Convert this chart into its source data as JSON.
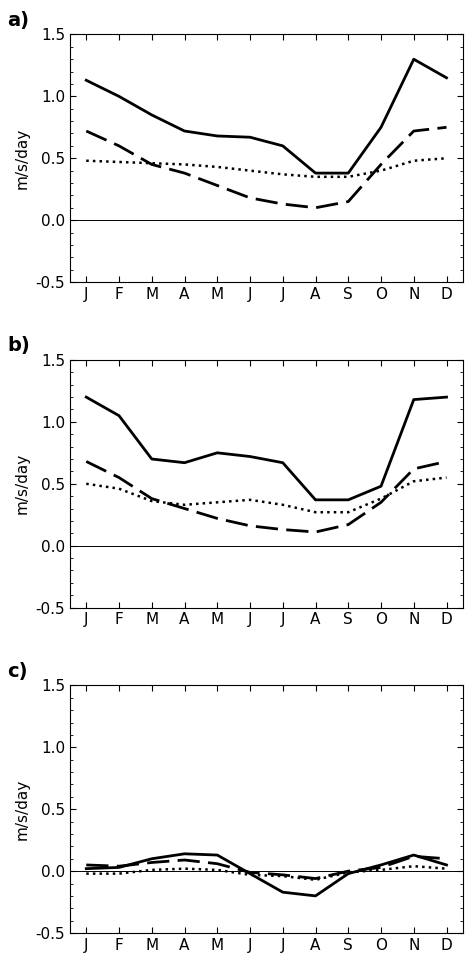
{
  "months": [
    "J",
    "F",
    "M",
    "A",
    "M",
    "J",
    "J",
    "A",
    "S",
    "O",
    "N",
    "D"
  ],
  "panel_a": {
    "solid": [
      1.13,
      1.0,
      0.85,
      0.72,
      0.68,
      0.67,
      0.6,
      0.38,
      0.38,
      0.75,
      1.3,
      1.15
    ],
    "dashed": [
      0.72,
      0.6,
      0.45,
      0.38,
      0.28,
      0.18,
      0.13,
      0.1,
      0.15,
      0.45,
      0.72,
      0.75
    ],
    "dotted": [
      0.48,
      0.47,
      0.46,
      0.45,
      0.43,
      0.4,
      0.37,
      0.35,
      0.35,
      0.4,
      0.48,
      0.5
    ]
  },
  "panel_b": {
    "solid": [
      1.2,
      1.05,
      0.7,
      0.67,
      0.75,
      0.72,
      0.67,
      0.37,
      0.37,
      0.48,
      1.18,
      1.2
    ],
    "dashed": [
      0.68,
      0.55,
      0.38,
      0.3,
      0.22,
      0.16,
      0.13,
      0.11,
      0.17,
      0.35,
      0.62,
      0.68
    ],
    "dotted": [
      0.5,
      0.46,
      0.36,
      0.33,
      0.35,
      0.37,
      0.33,
      0.27,
      0.27,
      0.38,
      0.52,
      0.55
    ]
  },
  "panel_c": {
    "solid": [
      0.02,
      0.03,
      0.1,
      0.14,
      0.13,
      -0.02,
      -0.17,
      -0.2,
      -0.02,
      0.05,
      0.13,
      0.05
    ],
    "dashed": [
      0.05,
      0.04,
      0.07,
      0.09,
      0.06,
      -0.01,
      -0.03,
      -0.06,
      0.0,
      0.03,
      0.12,
      0.1
    ],
    "dotted": [
      -0.02,
      -0.02,
      0.01,
      0.02,
      0.01,
      -0.03,
      -0.04,
      -0.07,
      -0.01,
      0.01,
      0.04,
      0.02
    ]
  },
  "ylim": [
    -0.5,
    1.5
  ],
  "yticks": [
    -0.5,
    0.0,
    0.5,
    1.0,
    1.5
  ],
  "ylabel": "m/s/day",
  "line_color": "black",
  "linewidth_solid": 2.0,
  "linewidth_dashed": 2.0,
  "linewidth_dotted": 1.8,
  "panel_labels": [
    "a)",
    "b)",
    "c)"
  ]
}
